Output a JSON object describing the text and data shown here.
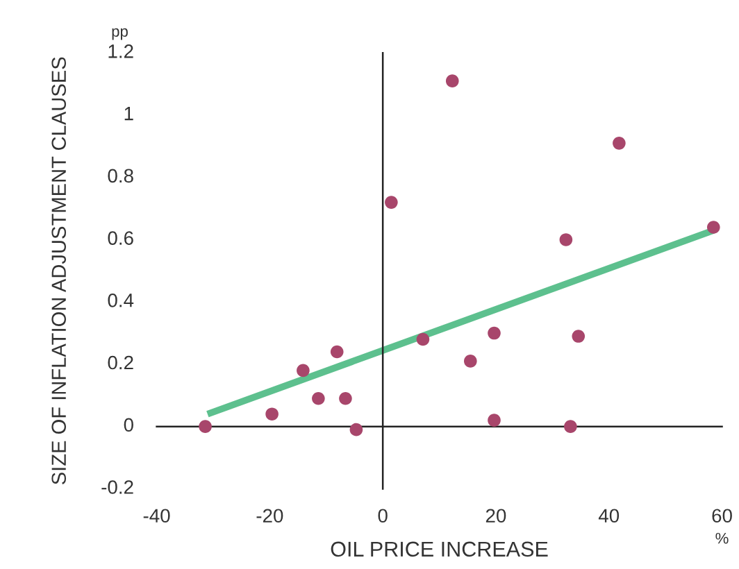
{
  "chart_data": {
    "type": "scatter",
    "xlabel": "OIL PRICE INCREASE",
    "ylabel": "SIZE OF INFLATION ADJUSTMENT CLAUSES",
    "annotations": [
      "pp",
      "%"
    ],
    "series": [
      {
        "color": "#a8466b",
        "marker": "circle",
        "x": [
          -31.4,
          -19.6,
          -14.1,
          -11.4,
          -8.1,
          -6.6,
          -4.7,
          1.5,
          7.1,
          12.3,
          15.5,
          19.7,
          19.7,
          32.4,
          33.2,
          34.6,
          41.8,
          58.5
        ],
        "values": [
          0.0,
          0.04,
          0.18,
          0.09,
          0.24,
          0.09,
          -0.01,
          0.72,
          0.28,
          1.11,
          0.21,
          0.3,
          0.02,
          0.6,
          0.0,
          0.29,
          0.91,
          0.64
        ]
      },
      {
        "type": "line",
        "color": "#5dc08e",
        "x": [
          -31,
          58.5
        ],
        "values": [
          0.04,
          0.63
        ]
      }
    ],
    "legend": false,
    "xlim": [
      -40,
      60
    ],
    "ylim": [
      -0.2,
      1.2
    ],
    "xticks": [
      -40,
      -20,
      0,
      20,
      40,
      60
    ],
    "yticks": [
      -0.2,
      0,
      0.2,
      0.4,
      0.6,
      0.8,
      1,
      1.2
    ]
  }
}
